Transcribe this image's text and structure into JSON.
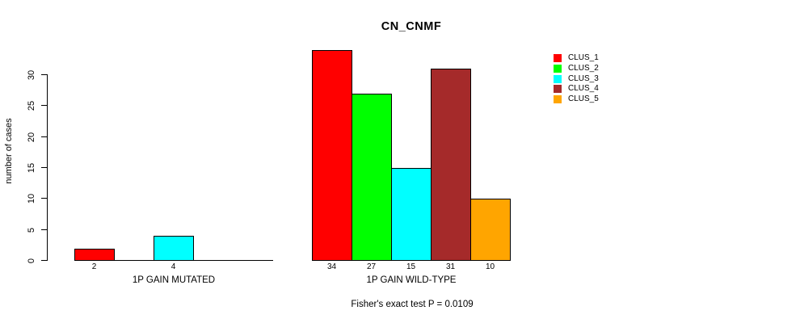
{
  "chart_data": {
    "type": "bar",
    "title": "CN_CNMF",
    "ylabel": "number of cases",
    "xlabel": "",
    "ylim": [
      0,
      34
    ],
    "yticks": [
      0,
      5,
      10,
      15,
      20,
      25,
      30
    ],
    "grid": false,
    "legend_position": "right",
    "categories": [
      "1P GAIN MUTATED",
      "1P GAIN WILD-TYPE"
    ],
    "series": [
      {
        "name": "CLUS_1",
        "color": "#FF0000",
        "values": [
          2,
          34
        ]
      },
      {
        "name": "CLUS_2",
        "color": "#00FF00",
        "values": [
          0,
          27
        ]
      },
      {
        "name": "CLUS_3",
        "color": "#00FFFF",
        "values": [
          4,
          15
        ]
      },
      {
        "name": "CLUS_4",
        "color": "#A52A2A",
        "values": [
          0,
          31
        ]
      },
      {
        "name": "CLUS_5",
        "color": "#FFA500",
        "values": [
          0,
          10
        ]
      }
    ],
    "bar_value_label_rule": "value shown under each bar only when value > 0",
    "footnote": "Fisher's exact test P = 0.0109"
  },
  "colors": {
    "axis": "#000000",
    "text": "#000000",
    "background": "#FFFFFF"
  }
}
